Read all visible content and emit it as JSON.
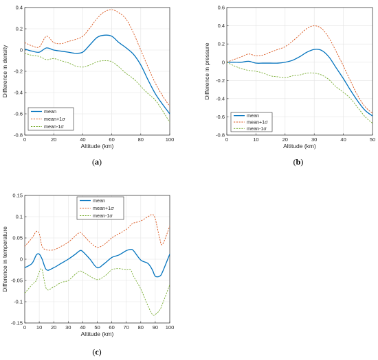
{
  "chart_data": [
    {
      "id": "a",
      "type": "line",
      "caption_letter": "a",
      "xlabel": "Altitude (km)",
      "ylabel": "Difference in density",
      "xlim": [
        0,
        100
      ],
      "ylim": [
        -0.8,
        0.4
      ],
      "xticks": [
        0,
        20,
        40,
        60,
        80,
        100
      ],
      "yticks": [
        -0.8,
        -0.6,
        -0.4,
        -0.2,
        0,
        0.2,
        0.4
      ],
      "grid": true,
      "legend_position": "bottom-left",
      "x": [
        0,
        5,
        10,
        15,
        20,
        25,
        30,
        35,
        40,
        45,
        50,
        55,
        60,
        65,
        70,
        75,
        80,
        85,
        90,
        95,
        100
      ],
      "series": [
        {
          "name": "mean",
          "sigma_symbol": "",
          "style": "solid",
          "color": "#0072BD",
          "values": [
            0.01,
            -0.01,
            -0.02,
            0.02,
            0.0,
            -0.01,
            -0.02,
            -0.03,
            -0.02,
            0.05,
            0.12,
            0.14,
            0.13,
            0.07,
            0.02,
            -0.04,
            -0.14,
            -0.28,
            -0.41,
            -0.51,
            -0.6
          ]
        },
        {
          "name": "mean+1",
          "sigma_symbol": "σ",
          "style": "dashed",
          "color": "#D95319",
          "values": [
            0.07,
            0.04,
            0.03,
            0.13,
            0.07,
            0.06,
            0.08,
            0.1,
            0.13,
            0.21,
            0.3,
            0.36,
            0.38,
            0.35,
            0.29,
            0.16,
            0.0,
            -0.16,
            -0.31,
            -0.43,
            -0.53
          ]
        },
        {
          "name": "mean-1",
          "sigma_symbol": "σ",
          "style": "dashed",
          "color": "#77AC30",
          "values": [
            -0.03,
            -0.05,
            -0.06,
            -0.09,
            -0.08,
            -0.1,
            -0.12,
            -0.15,
            -0.16,
            -0.14,
            -0.11,
            -0.1,
            -0.11,
            -0.16,
            -0.22,
            -0.27,
            -0.34,
            -0.41,
            -0.47,
            -0.57,
            -0.68
          ]
        }
      ]
    },
    {
      "id": "b",
      "type": "line",
      "caption_letter": "b",
      "xlabel": "Altitude (km)",
      "ylabel": "Difference in pressure",
      "xlim": [
        0,
        50
      ],
      "ylim": [
        -0.8,
        0.6
      ],
      "xticks": [
        0,
        10,
        20,
        30,
        40,
        50
      ],
      "yticks": [
        -0.8,
        -0.6,
        -0.4,
        -0.2,
        0,
        0.2,
        0.4,
        0.6
      ],
      "grid": true,
      "legend_position": "bottom-left",
      "x": [
        0,
        2.5,
        5,
        7.5,
        10,
        12.5,
        15,
        17.5,
        20,
        22.5,
        25,
        27.5,
        30,
        32.5,
        35,
        37.5,
        40,
        42.5,
        45,
        47.5,
        50
      ],
      "series": [
        {
          "name": "mean",
          "sigma_symbol": "",
          "style": "solid",
          "color": "#0072BD",
          "values": [
            0.0,
            0.0,
            0.0,
            0.01,
            -0.01,
            -0.01,
            -0.01,
            -0.01,
            0.0,
            0.02,
            0.06,
            0.11,
            0.14,
            0.13,
            0.06,
            -0.06,
            -0.18,
            -0.31,
            -0.43,
            -0.53,
            -0.59
          ]
        },
        {
          "name": "mean+1",
          "sigma_symbol": "σ",
          "style": "dashed",
          "color": "#D95319",
          "values": [
            0.0,
            0.03,
            0.06,
            0.09,
            0.07,
            0.08,
            0.11,
            0.14,
            0.17,
            0.23,
            0.3,
            0.37,
            0.4,
            0.37,
            0.27,
            0.12,
            -0.04,
            -0.21,
            -0.37,
            -0.49,
            -0.56
          ]
        },
        {
          "name": "mean-1",
          "sigma_symbol": "σ",
          "style": "dashed",
          "color": "#77AC30",
          "values": [
            0.0,
            -0.04,
            -0.07,
            -0.09,
            -0.1,
            -0.12,
            -0.15,
            -0.16,
            -0.17,
            -0.15,
            -0.14,
            -0.12,
            -0.12,
            -0.14,
            -0.19,
            -0.27,
            -0.33,
            -0.4,
            -0.5,
            -0.6,
            -0.67
          ]
        }
      ]
    },
    {
      "id": "c",
      "type": "line",
      "caption_letter": "c",
      "xlabel": "Altitude (km)",
      "ylabel": "Difference in temperature",
      "xlim": [
        0,
        100
      ],
      "ylim": [
        -0.15,
        0.15
      ],
      "xticks": [
        0,
        10,
        20,
        30,
        40,
        50,
        60,
        70,
        80,
        90,
        100
      ],
      "yticks": [
        -0.15,
        -0.1,
        -0.05,
        0,
        0.05,
        0.1,
        0.15
      ],
      "grid": true,
      "legend_position": "top-center",
      "x": [
        0,
        5,
        8,
        10,
        12,
        15,
        20,
        25,
        30,
        35,
        38,
        40,
        45,
        50,
        55,
        60,
        65,
        70,
        73,
        75,
        80,
        85,
        88,
        90,
        93,
        95,
        100
      ],
      "series": [
        {
          "name": "mean",
          "sigma_symbol": "",
          "style": "solid",
          "color": "#0072BD",
          "values": [
            -0.02,
            -0.01,
            0.01,
            0.012,
            0.0,
            -0.025,
            -0.02,
            -0.01,
            0.0,
            0.012,
            0.02,
            0.018,
            0.0,
            -0.02,
            -0.01,
            0.004,
            0.01,
            0.02,
            0.023,
            0.02,
            -0.002,
            -0.01,
            -0.025,
            -0.04,
            -0.04,
            -0.03,
            0.012
          ]
        },
        {
          "name": "mean+1",
          "sigma_symbol": "σ",
          "style": "dashed",
          "color": "#D95319",
          "values": [
            0.03,
            0.05,
            0.065,
            0.06,
            0.03,
            0.022,
            0.022,
            0.03,
            0.04,
            0.055,
            0.063,
            0.058,
            0.04,
            0.028,
            0.035,
            0.05,
            0.06,
            0.07,
            0.08,
            0.085,
            0.09,
            0.1,
            0.105,
            0.095,
            0.05,
            0.035,
            0.078
          ]
        },
        {
          "name": "mean-1",
          "sigma_symbol": "σ",
          "style": "dashed",
          "color": "#77AC30",
          "values": [
            -0.08,
            -0.06,
            -0.05,
            -0.03,
            -0.025,
            -0.07,
            -0.065,
            -0.055,
            -0.05,
            -0.035,
            -0.028,
            -0.03,
            -0.04,
            -0.048,
            -0.04,
            -0.025,
            -0.022,
            -0.025,
            -0.025,
            -0.04,
            -0.07,
            -0.11,
            -0.13,
            -0.13,
            -0.12,
            -0.105,
            -0.06
          ]
        }
      ]
    }
  ]
}
